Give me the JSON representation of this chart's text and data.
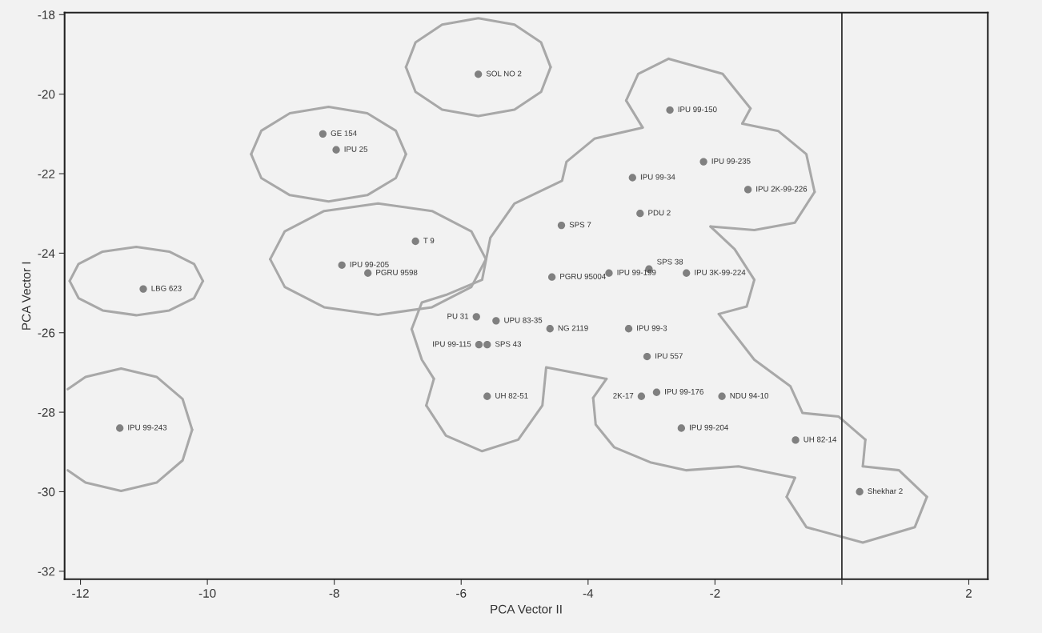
{
  "chart_data": {
    "type": "scatter",
    "xlabel": "PCA Vector II",
    "ylabel": "PCA Vector I",
    "xlim": [
      -12.25,
      2.3
    ],
    "ylim": [
      -32.2,
      -17.95
    ],
    "xticks": [
      -12,
      -10,
      -8,
      -6,
      -4,
      -2,
      {
        "value": 0,
        "label": null
      },
      2
    ],
    "yticks": [
      -32,
      -30,
      -28,
      -26,
      -24,
      -22,
      -20,
      -18
    ],
    "grid": false,
    "legend": false,
    "marker": "circle",
    "ref_lines": [
      {
        "axis": "x",
        "value": 0,
        "color": "#333333"
      }
    ],
    "series": [
      {
        "type": "line",
        "marker": "none",
        "color": "#a8a8a8",
        "x": [
          -6.87,
          -6.72,
          -6.3,
          -5.73,
          -5.16,
          -4.74,
          -4.59
        ],
        "values": [
          -19.32,
          -18.7,
          -18.25,
          -18.09,
          -18.25,
          -18.7,
          -19.32
        ]
      },
      {
        "type": "line",
        "marker": "none",
        "color": "#a8a8a8",
        "x": [
          -6.87,
          -6.72,
          -6.3,
          -5.73,
          -5.16,
          -4.74,
          -4.59
        ],
        "values": [
          -19.32,
          -19.94,
          -20.39,
          -20.55,
          -20.39,
          -19.94,
          -19.32
        ]
      },
      {
        "type": "line",
        "marker": "none",
        "color": "#a8a8a8",
        "x": [
          -9.31,
          -9.15,
          -8.7,
          -8.09,
          -7.48,
          -7.03,
          -6.87
        ],
        "values": [
          -21.51,
          -20.92,
          -20.48,
          -20.32,
          -20.48,
          -20.92,
          -21.51
        ]
      },
      {
        "type": "line",
        "marker": "none",
        "color": "#a8a8a8",
        "x": [
          -9.31,
          -9.15,
          -8.7,
          -8.09,
          -7.48,
          -7.03,
          -6.87
        ],
        "values": [
          -21.51,
          -22.11,
          -22.54,
          -22.7,
          -22.54,
          -22.11,
          -21.51
        ]
      },
      {
        "type": "line",
        "marker": "none",
        "color": "#a8a8a8",
        "x": [
          -12.17,
          -12.03,
          -11.65,
          -11.12,
          -10.6,
          -10.21,
          -10.07
        ],
        "values": [
          -24.7,
          -24.27,
          -23.96,
          -23.84,
          -23.96,
          -24.27,
          -24.7
        ]
      },
      {
        "type": "line",
        "marker": "none",
        "color": "#a8a8a8",
        "x": [
          -12.17,
          -12.03,
          -11.65,
          -11.12,
          -10.6,
          -10.21,
          -10.07
        ],
        "values": [
          -24.7,
          -25.13,
          -25.44,
          -25.56,
          -25.44,
          -25.13,
          -24.7
        ]
      },
      {
        "type": "line",
        "marker": "none",
        "color": "#a8a8a8",
        "x": [
          -12.2,
          -11.92,
          -11.36,
          -10.8,
          -10.39,
          -10.24
        ],
        "values": [
          -27.42,
          -27.11,
          -26.9,
          -27.11,
          -27.67,
          -28.44
        ]
      },
      {
        "type": "line",
        "marker": "none",
        "color": "#a8a8a8",
        "x": [
          -12.2,
          -11.92,
          -11.36,
          -10.8,
          -10.39,
          -10.24
        ],
        "values": [
          -29.46,
          -29.77,
          -29.98,
          -29.77,
          -29.21,
          -28.44
        ]
      },
      {
        "type": "line",
        "marker": "none",
        "color": "#a8a8a8",
        "x": [
          -9.01,
          -8.78,
          -8.16,
          -7.31,
          -6.46,
          -5.84,
          -5.61
        ],
        "values": [
          -24.15,
          -23.45,
          -22.94,
          -22.75,
          -22.94,
          -23.45,
          -24.15
        ]
      },
      {
        "type": "line",
        "marker": "none",
        "color": "#a8a8a8",
        "x": [
          -9.01,
          -8.78,
          -8.16,
          -7.31,
          -6.46,
          -5.84,
          -5.61
        ],
        "values": [
          -24.15,
          -24.85,
          -25.36,
          -25.55,
          -25.36,
          -24.85,
          -24.15
        ]
      },
      {
        "type": "line",
        "marker": "none",
        "color": "#a8a8a8",
        "x": [
          -2.73,
          -1.88,
          -1.44
        ],
        "values": [
          -19.11,
          -19.49,
          -20.36
        ]
      },
      {
        "type": "line",
        "marker": "none",
        "color": "#a8a8a8",
        "x": [
          -1.57,
          -1.44
        ],
        "values": [
          -20.74,
          -20.36
        ]
      },
      {
        "type": "line",
        "marker": "none",
        "color": "#a8a8a8",
        "x": [
          -1.57,
          -1.0,
          -0.56,
          -0.43
        ],
        "values": [
          -20.74,
          -20.93,
          -21.51,
          -22.46
        ]
      },
      {
        "type": "line",
        "marker": "none",
        "color": "#a8a8a8",
        "x": [
          -2.07,
          -1.38,
          -0.74,
          -0.43
        ],
        "values": [
          -23.33,
          -23.42,
          -23.23,
          -22.46
        ]
      },
      {
        "type": "line",
        "marker": "none",
        "color": "#a8a8a8",
        "x": [
          -2.07,
          -1.69,
          -1.38
        ],
        "values": [
          -23.33,
          -23.9,
          -24.67
        ]
      },
      {
        "type": "line",
        "marker": "none",
        "color": "#a8a8a8",
        "x": [
          -1.94,
          -1.5,
          -1.38
        ],
        "values": [
          -25.53,
          -25.34,
          -24.67
        ]
      },
      {
        "type": "line",
        "marker": "none",
        "color": "#a8a8a8",
        "x": [
          -1.94,
          -1.38,
          -0.81,
          -0.62,
          -0.05,
          0.37
        ],
        "values": [
          -25.53,
          -26.68,
          -27.35,
          -28.02,
          -28.11,
          -28.69
        ]
      },
      {
        "type": "line",
        "marker": "none",
        "color": "#a8a8a8",
        "x": [
          0.33,
          0.37
        ],
        "values": [
          -29.36,
          -28.69
        ]
      },
      {
        "type": "line",
        "marker": "none",
        "color": "#a8a8a8",
        "x": [
          0.33,
          0.9,
          1.34
        ],
        "values": [
          -29.36,
          -29.46,
          -30.13
        ]
      },
      {
        "type": "line",
        "marker": "none",
        "color": "#a8a8a8",
        "x": [
          -0.87,
          -0.56,
          0.33,
          1.15,
          1.34
        ],
        "values": [
          -30.13,
          -30.89,
          -31.28,
          -30.89,
          -30.13
        ]
      },
      {
        "type": "line",
        "marker": "none",
        "color": "#a8a8a8",
        "x": [
          -0.87,
          -0.74
        ],
        "values": [
          -30.13,
          -29.65
        ]
      },
      {
        "type": "line",
        "marker": "none",
        "color": "#a8a8a8",
        "x": [
          -3.92,
          -3.88,
          -3.59,
          -3.02,
          -2.45,
          -1.63,
          -0.74
        ],
        "values": [
          -27.64,
          -28.31,
          -28.88,
          -29.26,
          -29.46,
          -29.36,
          -29.65
        ]
      },
      {
        "type": "line",
        "marker": "none",
        "color": "#a8a8a8",
        "x": [
          -3.92,
          -3.71
        ],
        "values": [
          -27.64,
          -27.16
        ]
      },
      {
        "type": "line",
        "marker": "none",
        "color": "#a8a8a8",
        "x": [
          -6.55,
          -6.24,
          -5.67,
          -5.1,
          -4.72,
          -4.66,
          -3.71
        ],
        "values": [
          -27.83,
          -28.59,
          -28.98,
          -28.69,
          -27.83,
          -26.87,
          -27.16
        ]
      },
      {
        "type": "line",
        "marker": "none",
        "color": "#a8a8a8",
        "x": [
          -6.55,
          -6.43
        ],
        "values": [
          -27.83,
          -27.16
        ]
      },
      {
        "type": "line",
        "marker": "none",
        "color": "#a8a8a8",
        "x": [
          -6.78,
          -6.62,
          -6.43
        ],
        "values": [
          -25.91,
          -26.68,
          -27.16
        ]
      },
      {
        "type": "line",
        "marker": "none",
        "color": "#a8a8a8",
        "x": [
          -6.78,
          -6.62,
          -6.24,
          -5.67,
          -5.54,
          -5.16,
          -4.41,
          -4.34,
          -3.9,
          -3.14
        ],
        "values": [
          -25.91,
          -25.24,
          -25.05,
          -24.67,
          -23.61,
          -22.75,
          -22.18,
          -21.7,
          -21.12,
          -20.84
        ]
      },
      {
        "type": "line",
        "marker": "none",
        "color": "#a8a8a8",
        "x": [
          -3.4,
          -3.14
        ],
        "values": [
          -20.16,
          -20.84
        ]
      },
      {
        "type": "line",
        "marker": "none",
        "color": "#a8a8a8",
        "x": [
          -3.4,
          -3.21,
          -2.73
        ],
        "values": [
          -20.16,
          -19.49,
          -19.11
        ]
      },
      {
        "color": "#808080",
        "x": [
          -5.73,
          -8.18,
          -7.97,
          -6.72,
          -7.88,
          -7.47,
          -11.01,
          -11.38,
          -2.71,
          -2.18,
          -3.3,
          -1.48,
          -3.18,
          -4.42,
          -3.04,
          -3.67,
          -2.45,
          -4.57,
          -5.76,
          -5.45,
          -4.6,
          -3.36,
          -5.72,
          -5.59,
          -3.07,
          -5.59,
          -3.16,
          -2.92,
          -1.89,
          -2.53,
          -0.73,
          0.28
        ],
        "values": [
          -19.5,
          -21.0,
          -21.4,
          -23.7,
          -24.3,
          -24.5,
          -24.9,
          -28.4,
          -20.4,
          -21.7,
          -22.1,
          -22.4,
          -23.0,
          -23.3,
          -24.4,
          -24.5,
          -24.5,
          -24.6,
          -25.6,
          -25.7,
          -25.9,
          -25.9,
          -26.3,
          -26.3,
          -26.6,
          -27.6,
          -27.6,
          -27.5,
          -27.6,
          -28.4,
          -28.7,
          -30.0
        ]
      }
    ],
    "annotations": [
      {
        "text": "SOL NO 2",
        "x": -5.73,
        "y": -19.5
      },
      {
        "text": "GE 154",
        "x": -8.18,
        "y": -21.0
      },
      {
        "text": "IPU 25",
        "x": -7.97,
        "y": -21.4
      },
      {
        "text": "T 9",
        "x": -6.72,
        "y": -23.7
      },
      {
        "text": "IPU 99-205",
        "x": -7.88,
        "y": -24.3
      },
      {
        "text": "PGRU 9598",
        "x": -7.47,
        "y": -24.5
      },
      {
        "text": "LBG 623",
        "x": -11.01,
        "y": -24.9
      },
      {
        "text": "IPU 99-243",
        "x": -11.38,
        "y": -28.4
      },
      {
        "text": "IPU 99-150",
        "x": -2.71,
        "y": -20.4
      },
      {
        "text": "IPU 99-235",
        "x": -2.18,
        "y": -21.7
      },
      {
        "text": "IPU 99-34",
        "x": -3.3,
        "y": -22.1
      },
      {
        "text": "IPU 2K-99-226",
        "x": -1.48,
        "y": -22.4
      },
      {
        "text": "PDU 2",
        "x": -3.18,
        "y": -23.0
      },
      {
        "text": "SPS 7",
        "x": -4.42,
        "y": -23.3
      },
      {
        "text": "SPS 38",
        "x": -3.04,
        "y": -24.4
      },
      {
        "text": "IPU 99-199",
        "x": -3.67,
        "y": -24.5
      },
      {
        "text": "IPU 3K-99-224",
        "x": -2.45,
        "y": -24.5
      },
      {
        "text": "PGRU 95004",
        "x": -4.57,
        "y": -24.6
      },
      {
        "text": "PU 31",
        "x": -5.76,
        "y": -25.6
      },
      {
        "text": "UPU 83-35",
        "x": -5.45,
        "y": -25.7
      },
      {
        "text": "NG 2119",
        "x": -4.6,
        "y": -25.9
      },
      {
        "text": "IPU 99-3",
        "x": -3.36,
        "y": -25.9
      },
      {
        "text": "IPU 99-115",
        "x": -5.72,
        "y": -26.3
      },
      {
        "text": "SPS 43",
        "x": -5.59,
        "y": -26.3
      },
      {
        "text": "IPU 557",
        "x": -3.07,
        "y": -26.6
      },
      {
        "text": "UH 82-51",
        "x": -5.59,
        "y": -27.6
      },
      {
        "text": "2K-17",
        "x": -3.16,
        "y": -27.6
      },
      {
        "text": "IPU 99-176",
        "x": -2.92,
        "y": -27.5
      },
      {
        "text": "NDU 94-10",
        "x": -1.89,
        "y": -27.6
      },
      {
        "text": "IPU 99-204",
        "x": -2.53,
        "y": -28.4
      },
      {
        "text": "UH 82-14",
        "x": -0.73,
        "y": -28.7
      },
      {
        "text": "Shekhar 2",
        "x": 0.28,
        "y": -30.0
      }
    ]
  }
}
